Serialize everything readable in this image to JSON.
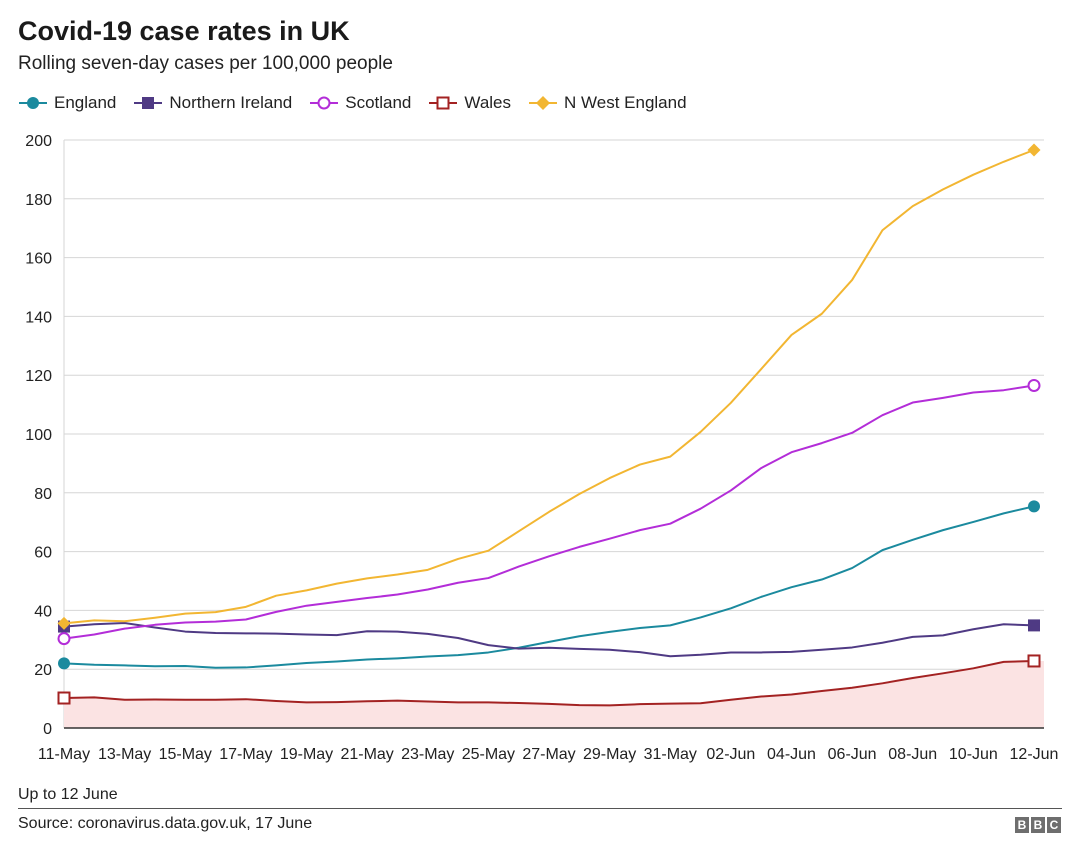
{
  "title": "Covid-19 case rates in UK",
  "subtitle": "Rolling seven-day cases per 100,000 people",
  "footnote": "Up to 12 June",
  "source": "Source: coronavirus.data.gov.uk, 17 June",
  "logo": [
    "B",
    "B",
    "C"
  ],
  "chart_data": {
    "type": "line",
    "ylim": [
      0,
      200
    ],
    "yticks": [
      0,
      20,
      40,
      60,
      80,
      100,
      120,
      140,
      160,
      180,
      200
    ],
    "grid": true,
    "legend_position": "top-left",
    "xtick_labels": [
      "11-May",
      "13-May",
      "15-May",
      "17-May",
      "19-May",
      "21-May",
      "23-May",
      "25-May",
      "27-May",
      "29-May",
      "31-May",
      "02-Jun",
      "04-Jun",
      "06-Jun",
      "08-Jun",
      "10-Jun",
      "12-Jun"
    ],
    "x": [
      "11-May",
      "12-May",
      "13-May",
      "14-May",
      "15-May",
      "16-May",
      "17-May",
      "18-May",
      "19-May",
      "20-May",
      "21-May",
      "22-May",
      "23-May",
      "24-May",
      "25-May",
      "26-May",
      "27-May",
      "28-May",
      "29-May",
      "30-May",
      "31-May",
      "01-Jun",
      "02-Jun",
      "03-Jun",
      "04-Jun",
      "05-Jun",
      "06-Jun",
      "07-Jun",
      "08-Jun",
      "09-Jun",
      "10-Jun",
      "11-Jun",
      "12-Jun"
    ],
    "series": [
      {
        "name": "England",
        "color": "#1b8a9e",
        "marker": "circle-filled",
        "values": [
          22.0,
          21.5,
          21.3,
          21.0,
          21.1,
          20.5,
          20.6,
          21.3,
          22.1,
          22.6,
          23.3,
          23.7,
          24.3,
          24.8,
          25.7,
          27.3,
          29.3,
          31.2,
          32.7,
          34.0,
          34.9,
          37.6,
          40.7,
          44.6,
          47.9,
          50.5,
          54.4,
          60.5,
          64.0,
          67.3,
          70.1,
          73.0,
          75.4
        ]
      },
      {
        "name": "Northern Ireland",
        "color": "#4f3a84",
        "marker": "square-filled",
        "values": [
          34.5,
          35.3,
          35.7,
          34.2,
          32.8,
          32.3,
          32.2,
          32.1,
          31.8,
          31.6,
          32.9,
          32.8,
          32.0,
          30.6,
          28.2,
          27.0,
          27.3,
          26.9,
          26.6,
          25.8,
          24.4,
          24.9,
          25.7,
          25.7,
          25.9,
          26.6,
          27.4,
          29.0,
          31.0,
          31.5,
          33.6,
          35.3,
          34.9
        ]
      },
      {
        "name": "Scotland",
        "color": "#b32dd8",
        "marker": "circle-open",
        "values": [
          30.4,
          31.8,
          33.8,
          35.1,
          35.9,
          36.2,
          36.9,
          39.5,
          41.6,
          42.9,
          44.2,
          45.4,
          47.1,
          49.4,
          51.0,
          54.9,
          58.4,
          61.6,
          64.4,
          67.3,
          69.5,
          74.6,
          80.8,
          88.4,
          93.8,
          96.9,
          100.4,
          106.4,
          110.7,
          112.3,
          114.1,
          114.9,
          116.5
        ]
      },
      {
        "name": "Wales",
        "color": "#a32222",
        "marker": "square-open",
        "values": [
          10.2,
          10.4,
          9.6,
          9.7,
          9.6,
          9.6,
          9.8,
          9.2,
          8.7,
          8.8,
          9.1,
          9.3,
          9.0,
          8.7,
          8.7,
          8.5,
          8.2,
          7.8,
          7.7,
          8.1,
          8.3,
          8.4,
          9.6,
          10.7,
          11.4,
          12.6,
          13.7,
          15.2,
          17.0,
          18.6,
          20.3,
          22.5,
          22.8
        ]
      },
      {
        "name": "N West England",
        "color": "#f2b632",
        "marker": "diamond-filled",
        "values": [
          35.6,
          36.6,
          36.3,
          37.5,
          38.9,
          39.4,
          41.2,
          45.0,
          46.8,
          49.1,
          50.9,
          52.2,
          53.8,
          57.5,
          60.3,
          66.9,
          73.5,
          79.6,
          85.0,
          89.6,
          92.3,
          100.7,
          110.6,
          122.1,
          133.7,
          140.9,
          152.4,
          169.3,
          177.5,
          183.2,
          188.2,
          192.6,
          196.6
        ]
      }
    ]
  }
}
